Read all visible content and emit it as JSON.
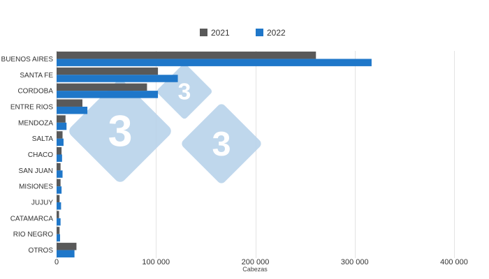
{
  "chart_data": {
    "type": "bar",
    "orientation": "horizontal",
    "categories": [
      "BUENOS AIRES",
      "SANTA FE",
      "CORDOBA",
      "ENTRE RIOS",
      "MENDOZA",
      "SALTA",
      "CHACO",
      "SAN JUAN",
      "MISIONES",
      "JUJUY",
      "CATAMARCA",
      "RIO NEGRO",
      "OTROS"
    ],
    "series": [
      {
        "name": "2021",
        "color": "#595959",
        "values": [
          261000,
          102000,
          91000,
          26000,
          9000,
          6000,
          5000,
          4000,
          4000,
          3000,
          2500,
          3000,
          20000
        ]
      },
      {
        "name": "2022",
        "color": "#1f77c9",
        "values": [
          317000,
          122000,
          102000,
          31000,
          10000,
          7000,
          5500,
          6000,
          5000,
          4500,
          4000,
          3500,
          18000
        ]
      }
    ],
    "xlabel": "Cabezas",
    "xlim": [
      0,
      400000
    ],
    "xticks": [
      0,
      100000,
      200000,
      300000,
      400000
    ],
    "xtick_labels": [
      "0",
      "100 000",
      "200 000",
      "300 000",
      "400 000"
    ],
    "grid": true,
    "legend_position": "top-center"
  },
  "watermark": {
    "glyph": "3",
    "color": "#b9d3ea"
  }
}
